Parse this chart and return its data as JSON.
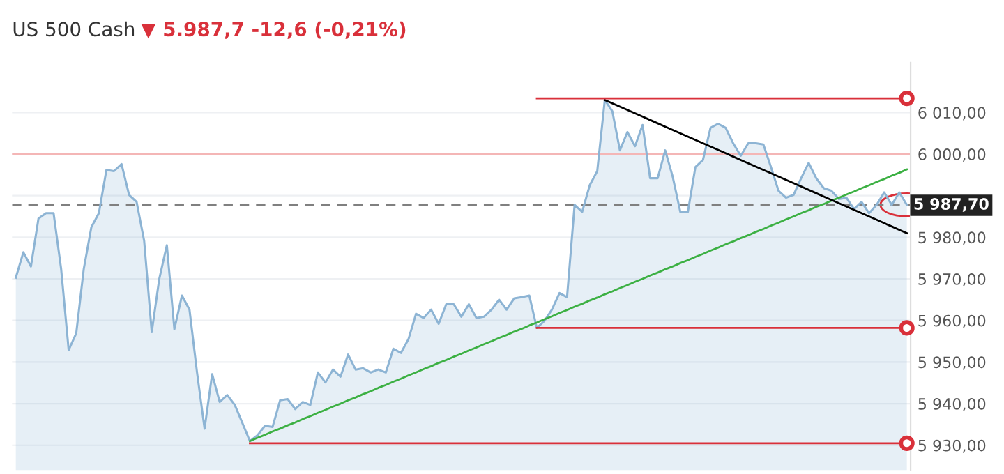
{
  "chart_data": {
    "type": "area",
    "title": "US 500 Cash",
    "subtitle": "▼ 5.987,7 -12,6 (-0,21%)",
    "categories": [
      null,
      null,
      null,
      null,
      null,
      null,
      null,
      null,
      null,
      null,
      null,
      null,
      null,
      null,
      null,
      null,
      null,
      null,
      null,
      null,
      null,
      null,
      null,
      null,
      null,
      null,
      null,
      null,
      null,
      null,
      null,
      null,
      null,
      null,
      null,
      null,
      null,
      null,
      null,
      null,
      null,
      null,
      null,
      null,
      null,
      null,
      null,
      null,
      null,
      null,
      null,
      null,
      null,
      null,
      null,
      null,
      null,
      null,
      null,
      null,
      null,
      null,
      null,
      null,
      null,
      null,
      null,
      null,
      null,
      null,
      null,
      null,
      null,
      null,
      null,
      null,
      null,
      null,
      null,
      null,
      null,
      null,
      null,
      null,
      null,
      null,
      null,
      null,
      null,
      null,
      null,
      null,
      null,
      null,
      null,
      null,
      null,
      null,
      null,
      null,
      null,
      null,
      null,
      null,
      null,
      null,
      null,
      null,
      null,
      null,
      null,
      null,
      null,
      null,
      null,
      null,
      null,
      null,
      null
    ],
    "series": [
      {
        "color": "#8db4d4",
        "values": [
          5970.3,
          5976.4,
          5973.0,
          5984.5,
          5985.8,
          5985.8,
          5972.4,
          5952.9,
          5956.9,
          5972.4,
          5982.4,
          5985.8,
          5996.2,
          5995.9,
          5997.6,
          5990.2,
          5988.5,
          5979.1,
          5957.2,
          5970.0,
          5978.1,
          5957.9,
          5966.0,
          5962.6,
          5947.5,
          5934.0,
          5947.1,
          5940.4,
          5942.1,
          5939.7,
          5935.4,
          5931.0,
          5932.4,
          5934.7,
          5934.4,
          5940.8,
          5941.1,
          5938.7,
          5940.4,
          5939.7,
          5947.5,
          5945.1,
          5948.2,
          5946.5,
          5951.8,
          5948.2,
          5948.5,
          5947.5,
          5948.2,
          5947.5,
          5953.2,
          5952.2,
          5955.5,
          5961.6,
          5960.6,
          5962.6,
          5959.2,
          5963.9,
          5963.9,
          5960.9,
          5963.9,
          5960.6,
          5960.9,
          5962.6,
          5965.0,
          5962.6,
          5965.3,
          5965.6,
          5966.0,
          5958.2,
          5959.9,
          5962.6,
          5966.6,
          5965.6,
          5987.8,
          5986.1,
          5992.5,
          5995.9,
          6013.0,
          6010.3,
          6000.9,
          6005.3,
          6001.9,
          6007.0,
          5994.2,
          5994.2,
          6000.9,
          5994.5,
          5986.1,
          5986.1,
          5996.9,
          5998.6,
          6006.3,
          6007.3,
          6006.3,
          6002.6,
          5999.6,
          6002.6,
          6002.6,
          6002.3,
          5996.9,
          5991.2,
          5989.5,
          5990.2,
          5994.2,
          5997.9,
          5994.2,
          5991.8,
          5991.2,
          5989.2,
          5989.5,
          5986.8,
          5988.5,
          5985.8,
          5987.8,
          5990.8,
          5987.8,
          5990.8,
          5987.8
        ]
      },
      {
        "type": "line",
        "color": "#3cb043",
        "values": [
          null,
          null,
          null,
          null,
          null,
          null,
          null,
          null,
          null,
          null,
          null,
          null,
          null,
          null,
          null,
          null,
          null,
          null,
          null,
          null,
          null,
          null,
          null,
          null,
          null,
          null,
          null,
          null,
          null,
          null,
          null,
          5931.0,
          5931.8,
          5932.5,
          5933.3,
          5934.0,
          5934.8,
          5935.5,
          5936.3,
          5937.0,
          5937.8,
          5938.5,
          5939.3,
          5940.0,
          5940.8,
          5941.5,
          5942.3,
          5943.0,
          5943.8,
          5944.5,
          5945.3,
          5946.0,
          5946.8,
          5947.5,
          5948.3,
          5949.0,
          5949.8,
          5950.5,
          5951.3,
          5952.0,
          5952.8,
          5953.5,
          5954.3,
          5955.0,
          5955.8,
          5956.5,
          5957.3,
          5958.0,
          5958.8,
          5959.5,
          5960.3,
          5961.0,
          5961.8,
          5962.5,
          5963.3,
          5964.0,
          5964.8,
          5965.5,
          5966.3,
          5967.0,
          5967.8,
          5968.5,
          5969.3,
          5970.0,
          5970.8,
          5971.5,
          5972.3,
          5973.0,
          5973.8,
          5974.5,
          5975.3,
          5976.0,
          5976.8,
          5977.5,
          5978.3,
          5979.0,
          5979.8,
          5980.5,
          5981.3,
          5982.0,
          5982.8,
          5983.5,
          5984.3,
          5985.0,
          5985.8,
          5986.5,
          5987.3,
          5988.0,
          5988.8,
          5989.5,
          5990.3,
          5991.0,
          5991.8,
          5992.5,
          5993.3,
          5994.0,
          5994.8,
          5995.5,
          5996.3
        ]
      },
      {
        "type": "line",
        "color": "#000000",
        "values": [
          null,
          null,
          null,
          null,
          null,
          null,
          null,
          null,
          null,
          null,
          null,
          null,
          null,
          null,
          null,
          null,
          null,
          null,
          null,
          null,
          null,
          null,
          null,
          null,
          null,
          null,
          null,
          null,
          null,
          null,
          null,
          null,
          null,
          null,
          null,
          null,
          null,
          null,
          null,
          null,
          null,
          null,
          null,
          null,
          null,
          null,
          null,
          null,
          null,
          null,
          null,
          null,
          null,
          null,
          null,
          null,
          null,
          null,
          null,
          null,
          null,
          null,
          null,
          null,
          null,
          null,
          null,
          null,
          null,
          null,
          null,
          null,
          null,
          null,
          null,
          null,
          null,
          null,
          6013.0,
          6012.2,
          6011.4,
          6010.6,
          6009.8,
          6009.0,
          6008.2,
          6007.4,
          6006.6,
          6005.8,
          6005.0,
          6004.2,
          6003.4,
          6002.6,
          6001.8,
          6001.0,
          6000.2,
          5999.4,
          5998.6,
          5997.8,
          5997.0,
          5996.2,
          5995.4,
          5994.6,
          5993.8,
          5993.0,
          5992.2,
          5991.4,
          5990.6,
          5989.8,
          5989.0,
          5988.2,
          5987.4,
          5986.6,
          5985.8,
          5985.0,
          5984.2,
          5983.4,
          5982.6,
          5981.8,
          5981.0
        ]
      },
      {
        "type": "line",
        "color": "#d9303a",
        "values": [
          null,
          null,
          null,
          null,
          null,
          null,
          null,
          null,
          null,
          null,
          null,
          null,
          null,
          null,
          null,
          null,
          null,
          null,
          null,
          null,
          null,
          null,
          null,
          null,
          null,
          null,
          null,
          null,
          null,
          null,
          null,
          null,
          null,
          null,
          null,
          null,
          null,
          null,
          null,
          null,
          null,
          null,
          null,
          null,
          null,
          null,
          null,
          null,
          null,
          null,
          null,
          null,
          null,
          null,
          null,
          null,
          null,
          null,
          null,
          null,
          null,
          null,
          null,
          null,
          null,
          null,
          null,
          null,
          null,
          6013.4,
          6013.4,
          6013.4,
          6013.4,
          6013.4,
          6013.4,
          6013.4,
          6013.4,
          6013.4,
          6013.4,
          6013.4,
          6013.4,
          6013.4,
          6013.4,
          6013.4,
          6013.4,
          6013.4,
          6013.4,
          6013.4,
          6013.4,
          6013.4,
          6013.4,
          6013.4,
          6013.4,
          6013.4,
          6013.4,
          6013.4,
          6013.4,
          6013.4,
          6013.4,
          6013.4,
          6013.4,
          6013.4,
          6013.4,
          6013.4,
          6013.4,
          6013.4,
          6013.4,
          6013.4,
          6013.4,
          6013.4,
          6013.4,
          6013.4,
          6013.4,
          6013.4,
          6013.4,
          6013.4,
          6013.4,
          6013.4,
          6013.4
        ]
      },
      {
        "type": "line",
        "color": "#d9303a",
        "values": [
          null,
          null,
          null,
          null,
          null,
          null,
          null,
          null,
          null,
          null,
          null,
          null,
          null,
          null,
          null,
          null,
          null,
          null,
          null,
          null,
          null,
          null,
          null,
          null,
          null,
          null,
          null,
          null,
          null,
          null,
          null,
          null,
          null,
          null,
          null,
          null,
          null,
          null,
          null,
          null,
          null,
          null,
          null,
          null,
          null,
          null,
          null,
          null,
          null,
          null,
          null,
          null,
          null,
          null,
          null,
          null,
          null,
          null,
          null,
          null,
          null,
          null,
          null,
          null,
          null,
          null,
          null,
          null,
          null,
          5958.2,
          5958.2,
          5958.2,
          5958.2,
          5958.2,
          5958.2,
          5958.2,
          5958.2,
          5958.2,
          5958.2,
          5958.2,
          5958.2,
          5958.2,
          5958.2,
          5958.2,
          5958.2,
          5958.2,
          5958.2,
          5958.2,
          5958.2,
          5958.2,
          5958.2,
          5958.2,
          5958.2,
          5958.2,
          5958.2,
          5958.2,
          5958.2,
          5958.2,
          5958.2,
          5958.2,
          5958.2,
          5958.2,
          5958.2,
          5958.2,
          5958.2,
          5958.2,
          5958.2,
          5958.2,
          5958.2,
          5958.2,
          5958.2,
          5958.2,
          5958.2,
          5958.2,
          5958.2,
          5958.2,
          5958.2,
          5958.2,
          5958.2
        ]
      },
      {
        "type": "line",
        "color": "#d9303a",
        "values": [
          null,
          null,
          null,
          null,
          null,
          null,
          null,
          null,
          null,
          null,
          null,
          null,
          null,
          null,
          null,
          null,
          null,
          null,
          null,
          null,
          null,
          null,
          null,
          null,
          null,
          null,
          null,
          null,
          null,
          null,
          null,
          5930.5,
          5930.5,
          5930.5,
          5930.5,
          5930.5,
          5930.5,
          5930.5,
          5930.5,
          5930.5,
          5930.5,
          5930.5,
          5930.5,
          5930.5,
          5930.5,
          5930.5,
          5930.5,
          5930.5,
          5930.5,
          5930.5,
          5930.5,
          5930.5,
          5930.5,
          5930.5,
          5930.5,
          5930.5,
          5930.5,
          5930.5,
          5930.5,
          5930.5,
          5930.5,
          5930.5,
          5930.5,
          5930.5,
          5930.5,
          5930.5,
          5930.5,
          5930.5,
          5930.5,
          5930.5,
          5930.5,
          5930.5,
          5930.5,
          5930.5,
          5930.5,
          5930.5,
          5930.5,
          5930.5,
          5930.5,
          5930.5,
          5930.5,
          5930.5,
          5930.5,
          5930.5,
          5930.5,
          5930.5,
          5930.5,
          5930.5,
          5930.5,
          5930.5,
          5930.5,
          5930.5,
          5930.5,
          5930.5,
          5930.5,
          5930.5,
          5930.5,
          5930.5,
          5930.5,
          5930.5,
          5930.5,
          5930.5,
          5930.5,
          5930.5,
          5930.5,
          5930.5,
          5930.5,
          5930.5,
          5930.5,
          5930.5,
          5930.5,
          5930.5,
          5930.5,
          5930.5,
          5930.5,
          5930.5,
          5930.5,
          5930.5,
          5930.5
        ]
      }
    ],
    "ylim": [
      5924,
      6022
    ],
    "yticks": [
      {
        "value": 5930,
        "label": "5 930,00"
      },
      {
        "value": 5940,
        "label": "5 940,00"
      },
      {
        "value": 5950,
        "label": "5 950,00"
      },
      {
        "value": 5960,
        "label": "5 960,00"
      },
      {
        "value": 5970,
        "label": "5 970,00"
      },
      {
        "value": 5980,
        "label": "5 980,00"
      },
      {
        "value": 5990,
        "label": null
      },
      {
        "value": 6000,
        "label": "6 000,00"
      },
      {
        "value": 6010,
        "label": "6 010,00"
      }
    ],
    "ref_lines": [
      {
        "axis": "y",
        "value": 6000,
        "label": null,
        "color": "#f4b6b6",
        "line_style": "solid"
      },
      {
        "axis": "y",
        "value": 5987.7,
        "label": "5 987,70",
        "color": "#808080",
        "line_style": "dashed"
      }
    ],
    "grid": "y",
    "tick_labels": "y"
  }
}
